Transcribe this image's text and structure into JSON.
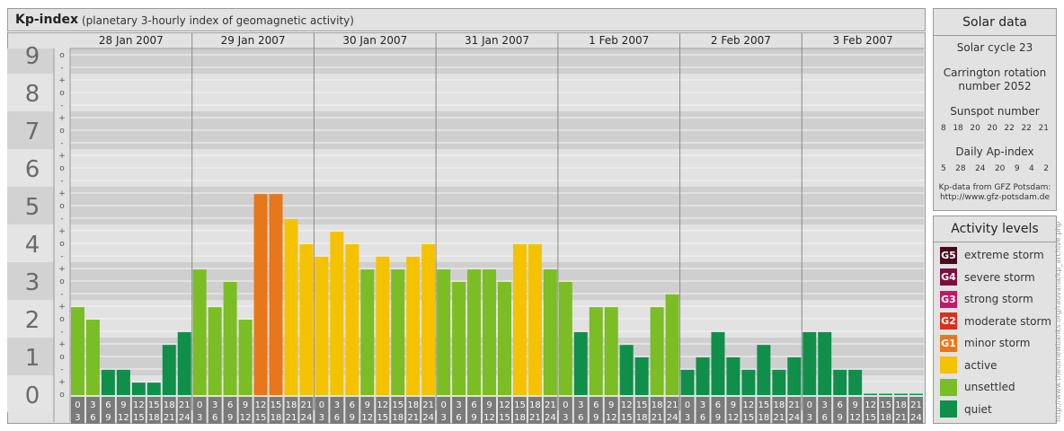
{
  "header": {
    "title": "Kp-index",
    "subtitle": "(planetary 3-hourly index of geomagnetic activity)"
  },
  "chart_data": {
    "type": "bar",
    "y_levels": [
      "0",
      "1",
      "2",
      "3",
      "4",
      "5",
      "6",
      "7",
      "8",
      "9"
    ],
    "sub_marks": [
      "+",
      "o",
      "-"
    ],
    "ylim": [
      0,
      9.33
    ],
    "days": [
      "28 Jan 2007",
      "29 Jan 2007",
      "30 Jan 2007",
      "31 Jan 2007",
      "1 Feb 2007",
      "2 Feb 2007",
      "3 Feb 2007"
    ],
    "interval_start": [
      "0",
      "3",
      "6",
      "9",
      "12",
      "15",
      "18",
      "21"
    ],
    "interval_end": [
      "3",
      "6",
      "9",
      "12",
      "15",
      "18",
      "21",
      "24"
    ],
    "values": [
      [
        2.33,
        2.0,
        0.67,
        0.67,
        0.33,
        0.33,
        1.33,
        1.67
      ],
      [
        3.33,
        2.33,
        3.0,
        2.0,
        5.33,
        5.33,
        4.67,
        4.0
      ],
      [
        3.67,
        4.33,
        4.0,
        3.33,
        3.67,
        3.33,
        3.67,
        4.0
      ],
      [
        3.33,
        3.0,
        3.33,
        3.33,
        3.0,
        4.0,
        4.0,
        3.33
      ],
      [
        3.0,
        1.67,
        2.33,
        2.33,
        1.33,
        1.0,
        2.33,
        2.67
      ],
      [
        0.67,
        1.0,
        1.67,
        1.0,
        0.67,
        1.33,
        0.67,
        1.0
      ],
      [
        1.67,
        1.67,
        0.67,
        0.67,
        0.0,
        0.0,
        0.0,
        0.0
      ]
    ],
    "color_scale": [
      {
        "min": 0,
        "color": "#0f8f4a"
      },
      {
        "min": 2,
        "color": "#7bbd24"
      },
      {
        "min": 3.67,
        "color": "#f5c200"
      },
      {
        "min": 5,
        "color": "#e8761a"
      }
    ],
    "grid": true
  },
  "solar": {
    "title": "Solar data",
    "cycle": "Solar cycle 23",
    "carrington_line1": "Carrington rotation",
    "carrington_line2": "number 2052",
    "sunspot_title": "Sunspot number",
    "sunspot_values": [
      "8",
      "18",
      "20",
      "20",
      "22",
      "22",
      "21"
    ],
    "ap_title": "Daily Ap-index",
    "ap_values": [
      "5",
      "28",
      "24",
      "20",
      "9",
      "4",
      "2"
    ],
    "source_line1": "Kp-data from GFZ Potsdam:",
    "source_line2": "http://www.gfz-potsdam.de"
  },
  "activity": {
    "title": "Activity levels",
    "levels": [
      {
        "badge": "G5",
        "label": "extreme storm",
        "color": "#4a0a1e"
      },
      {
        "badge": "G4",
        "label": "severe storm",
        "color": "#7a1040"
      },
      {
        "badge": "G3",
        "label": "strong storm",
        "color": "#c0186a"
      },
      {
        "badge": "G2",
        "label": "moderate storm",
        "color": "#d8321e"
      },
      {
        "badge": "G1",
        "label": "minor storm",
        "color": "#e8761a"
      },
      {
        "badge": "",
        "label": "active",
        "color": "#f5c200"
      },
      {
        "badge": "",
        "label": "unsettled",
        "color": "#7bbd24"
      },
      {
        "badge": "",
        "label": "quiet",
        "color": "#0f8f4a"
      }
    ]
  },
  "watermark": "http://www.theusnewbanks.org/rauvana/kp_archive.php"
}
